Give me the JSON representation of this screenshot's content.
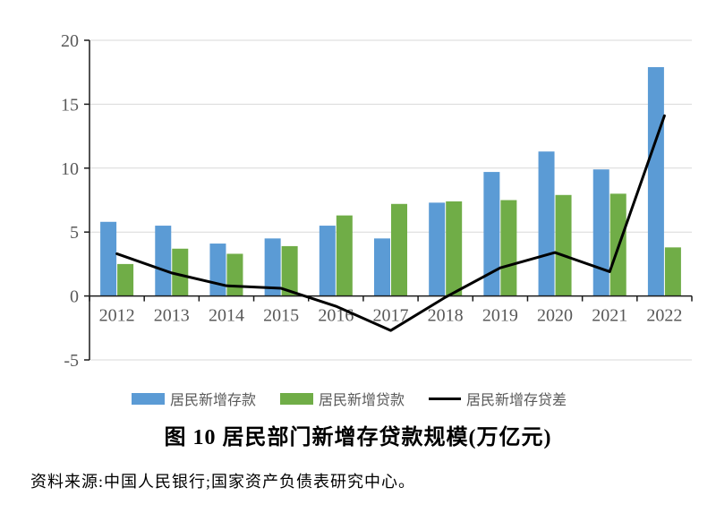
{
  "title": {
    "text": "图 10  居民部门新增存贷款规模(万亿元)"
  },
  "source": {
    "text": "资料来源:中国人民银行;国家资产负债表研究中心。"
  },
  "colors": {
    "deposits_bar": "#5B9BD5",
    "loans_bar": "#70AD47",
    "diff_line": "#000000",
    "gridline": "#D9D9D9",
    "axis": "#1a1a1a",
    "tick_label": "#595959",
    "background": "#FFFFFF"
  },
  "chart_data": {
    "type": "bar",
    "subtype": "grouped-bars-with-line-overlay",
    "title": "图 10  居民部门新增存贷款规模(万亿元)",
    "xlabel": "",
    "ylabel": "",
    "categories": [
      "2012",
      "2013",
      "2014",
      "2015",
      "2016",
      "2017",
      "2018",
      "2019",
      "2020",
      "2021",
      "2022"
    ],
    "series": [
      {
        "name": "居民新增存款",
        "type": "bar",
        "color": "#5B9BD5",
        "values": [
          5.8,
          5.5,
          4.1,
          4.5,
          5.5,
          4.5,
          7.3,
          9.7,
          11.3,
          9.9,
          17.9
        ]
      },
      {
        "name": "居民新增贷款",
        "type": "bar",
        "color": "#70AD47",
        "values": [
          2.5,
          3.7,
          3.3,
          3.9,
          6.3,
          7.2,
          7.4,
          7.5,
          7.9,
          8.0,
          3.8
        ]
      },
      {
        "name": "居民新增存贷差",
        "type": "line",
        "color": "#000000",
        "values": [
          3.3,
          1.8,
          0.8,
          0.6,
          -0.8,
          -2.7,
          -0.1,
          2.2,
          3.4,
          1.9,
          14.1
        ]
      }
    ],
    "ylim": [
      -5,
      20
    ],
    "yticks": [
      20,
      15,
      10,
      5,
      0,
      -5
    ],
    "grid": true,
    "legend_position": "bottom"
  }
}
